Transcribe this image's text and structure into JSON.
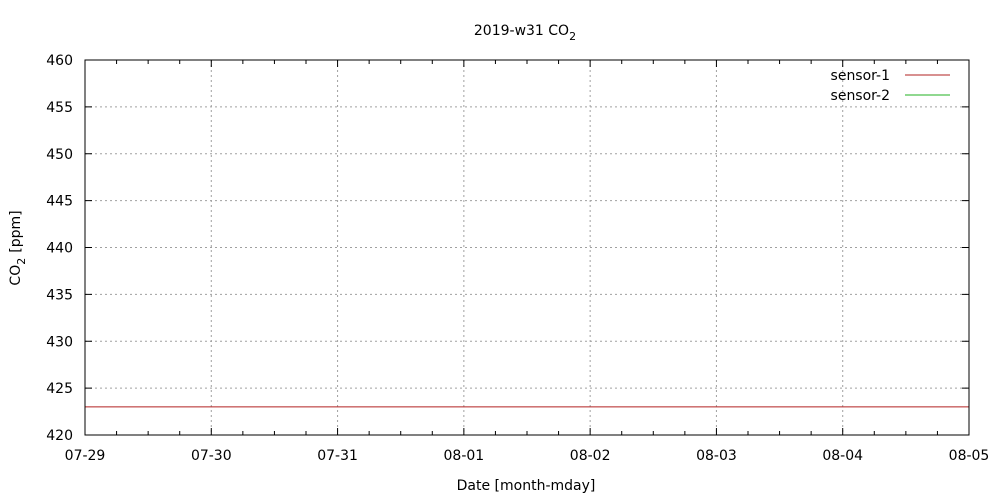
{
  "chart_data": {
    "type": "line",
    "title": "2019-w31 CO",
    "title_subscript": "2",
    "xlabel": "Date [month-mday]",
    "ylabel": "CO",
    "ylabel_subscript": "2",
    "ylabel_suffix": "[ppm]",
    "x_ticks": [
      "07-29",
      "07-30",
      "07-31",
      "08-01",
      "08-02",
      "08-03",
      "08-04",
      "08-05"
    ],
    "xlim": [
      "07-29",
      "08-05"
    ],
    "ylim": [
      420,
      460
    ],
    "y_ticks": [
      420,
      425,
      430,
      435,
      440,
      445,
      450,
      455,
      460
    ],
    "grid": true,
    "legend_position": "top-right",
    "series": [
      {
        "name": "sensor-1",
        "color": "#b22222",
        "x": [
          "07-29",
          "08-05"
        ],
        "y": [
          423,
          423
        ]
      },
      {
        "name": "sensor-2",
        "color": "#22b222",
        "x": [],
        "y": []
      }
    ]
  }
}
